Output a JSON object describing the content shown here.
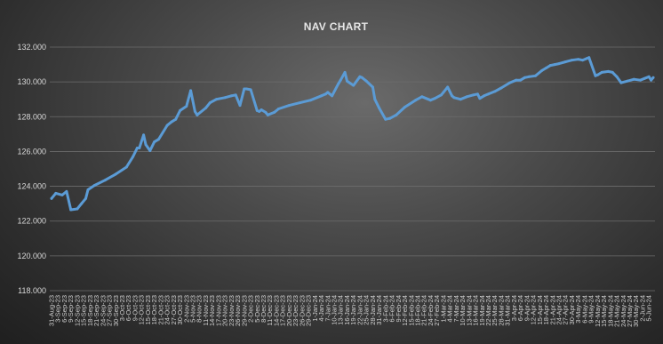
{
  "chart_data": {
    "type": "line",
    "title": "NAV CHART",
    "xlabel": "",
    "ylabel": "",
    "ylim": [
      118,
      132
    ],
    "y_ticks": [
      "118.000",
      "120.000",
      "122.000",
      "124.000",
      "126.000",
      "128.000",
      "130.000",
      "132.000"
    ],
    "grid": true,
    "legend": "none",
    "series_color": "#5b9bd5",
    "x_tick_labels": [
      "31-Aug-23",
      "3-Sep-23",
      "6-Sep-23",
      "9-Sep-23",
      "12-Sep-23",
      "15-Sep-23",
      "18-Sep-23",
      "21-Sep-23",
      "24-Sep-23",
      "27-Sep-23",
      "30-Sep-23",
      "3-Oct-23",
      "6-Oct-23",
      "9-Oct-23",
      "12-Oct-23",
      "15-Oct-23",
      "18-Oct-23",
      "21-Oct-23",
      "24-Oct-23",
      "27-Oct-23",
      "30-Oct-23",
      "2-Nov-23",
      "5-Nov-23",
      "8-Nov-23",
      "11-Nov-23",
      "14-Nov-23",
      "17-Nov-23",
      "20-Nov-23",
      "23-Nov-23",
      "26-Nov-23",
      "29-Nov-23",
      "2-Dec-23",
      "5-Dec-23",
      "8-Dec-23",
      "11-Dec-23",
      "14-Dec-23",
      "17-Dec-23",
      "20-Dec-23",
      "23-Dec-23",
      "26-Dec-23",
      "29-Dec-23",
      "1-Jan-24",
      "4-Jan-24",
      "7-Jan-24",
      "10-Jan-24",
      "13-Jan-24",
      "16-Jan-24",
      "19-Jan-24",
      "22-Jan-24",
      "25-Jan-24",
      "28-Jan-24",
      "31-Jan-24",
      "3-Feb-24",
      "6-Feb-24",
      "9-Feb-24",
      "12-Feb-24",
      "15-Feb-24",
      "18-Feb-24",
      "21-Feb-24",
      "24-Feb-24",
      "27-Feb-24",
      "1-Mar-24",
      "4-Mar-24",
      "7-Mar-24",
      "10-Mar-24",
      "13-Mar-24",
      "16-Mar-24",
      "19-Mar-24",
      "22-Mar-24",
      "25-Mar-24",
      "28-Mar-24",
      "31-Mar-24",
      "3-Apr-24",
      "6-Apr-24",
      "9-Apr-24",
      "12-Apr-24",
      "15-Apr-24",
      "18-Apr-24",
      "21-Apr-24",
      "24-Apr-24",
      "27-Apr-24",
      "30-Apr-24",
      "3-May-24",
      "6-May-24",
      "9-May-24",
      "12-May-24",
      "15-May-24",
      "18-May-24",
      "21-May-24",
      "24-May-24",
      "27-May-24",
      "30-May-24",
      "2-Jun-24",
      "5-Jun-24"
    ],
    "series": [
      {
        "x": [
          "31-Aug-23",
          "2-Sep-23",
          "5-Sep-23",
          "7-Sep-23",
          "9-Sep-23",
          "12-Sep-23",
          "14-Sep-23",
          "16-Sep-23",
          "17-Sep-23",
          "20-Sep-23",
          "25-Sep-23",
          "30-Sep-23",
          "5-Oct-23",
          "8-Oct-23",
          "10-Oct-23",
          "11-Oct-23",
          "13-Oct-23",
          "14-Oct-23",
          "16-Oct-23",
          "18-Oct-23",
          "20-Oct-23",
          "24-Oct-23",
          "26-Oct-23",
          "28-Oct-23",
          "30-Oct-23",
          "2-Nov-23",
          "4-Nov-23",
          "6-Nov-23",
          "7-Nov-23",
          "7-Nov-23",
          "11-Nov-23",
          "13-Nov-23",
          "16-Nov-23",
          "20-Nov-23",
          "23-Nov-23",
          "25-Nov-23",
          "27-Nov-23",
          "29-Nov-23",
          "30-Nov-23",
          "2-Dec-23",
          "5-Dec-23",
          "6-Dec-23",
          "7-Dec-23",
          "9-Dec-23",
          "10-Dec-23",
          "13-Dec-23",
          "15-Dec-23",
          "20-Dec-23",
          "25-Dec-23",
          "30-Dec-23",
          "4-Jan-24",
          "6-Jan-24",
          "7-Jan-24",
          "9-Jan-24",
          "12-Jan-24",
          "13-Jan-24",
          "15-Jan-24",
          "16-Jan-24",
          "19-Jan-24",
          "22-Jan-24",
          "23-Jan-24",
          "25-Jan-24",
          "28-Jan-24",
          "29-Jan-24",
          "31-Jan-24",
          "3-Feb-24",
          "5-Feb-24",
          "8-Feb-24",
          "12-Feb-24",
          "17-Feb-24",
          "20-Feb-24",
          "24-Feb-24",
          "26-Feb-24",
          "29-Feb-24",
          "1-Mar-24",
          "3-Mar-24",
          "5-Mar-24",
          "6-Mar-24",
          "9-Mar-24",
          "12-Mar-24",
          "15-Mar-24",
          "17-Mar-24",
          "18-Mar-24",
          "20-Mar-24",
          "22-Mar-24",
          "25-Mar-24",
          "28-Mar-24",
          "1-Apr-24",
          "4-Apr-24",
          "6-Apr-24",
          "8-Apr-24",
          "10-Apr-24",
          "13-Apr-24",
          "16-Apr-24",
          "18-Apr-24",
          "20-Apr-24",
          "22-Apr-24",
          "24-Apr-24",
          "27-Apr-24",
          "30-Apr-24",
          "3-May-24",
          "5-May-24",
          "7-May-24",
          "8-May-24",
          "11-May-24",
          "12-May-24",
          "14-May-24",
          "17-May-24",
          "19-May-24",
          "21-May-24",
          "23-May-24",
          "26-May-24",
          "29-May-24",
          "1-Jun-24",
          "3-Jun-24",
          "5-Jun-24",
          "6-Jun-24",
          "7-Jun-24"
        ],
        "y": [
          123.3,
          123.6,
          123.5,
          123.7,
          122.65,
          122.7,
          123.0,
          123.3,
          123.8,
          124.05,
          124.35,
          124.7,
          125.1,
          125.7,
          126.2,
          126.2,
          126.95,
          126.4,
          126.05,
          126.55,
          126.7,
          127.5,
          127.7,
          127.85,
          128.35,
          128.6,
          129.5,
          128.3,
          128.1,
          128.1,
          128.5,
          128.8,
          129.0,
          129.1,
          129.2,
          129.25,
          128.65,
          129.6,
          129.6,
          129.55,
          128.35,
          128.3,
          128.4,
          128.25,
          128.1,
          128.25,
          128.45,
          128.65,
          128.8,
          128.95,
          129.2,
          129.3,
          129.4,
          129.2,
          129.9,
          130.1,
          130.55,
          130.05,
          129.8,
          130.3,
          130.25,
          130.05,
          129.7,
          129.0,
          128.5,
          127.85,
          127.9,
          128.1,
          128.55,
          128.95,
          129.15,
          128.95,
          129.05,
          129.25,
          129.4,
          129.7,
          129.2,
          129.1,
          129.0,
          129.15,
          129.25,
          129.3,
          129.05,
          129.2,
          129.3,
          129.45,
          129.65,
          129.95,
          130.1,
          130.1,
          130.25,
          130.3,
          130.35,
          130.65,
          130.8,
          130.95,
          131.0,
          131.05,
          131.15,
          131.25,
          131.3,
          131.25,
          131.35,
          131.4,
          130.35,
          130.4,
          130.55,
          130.6,
          130.55,
          130.3,
          129.95,
          130.05,
          130.15,
          130.1,
          130.2,
          130.3,
          130.1,
          130.25
        ]
      }
    ]
  }
}
